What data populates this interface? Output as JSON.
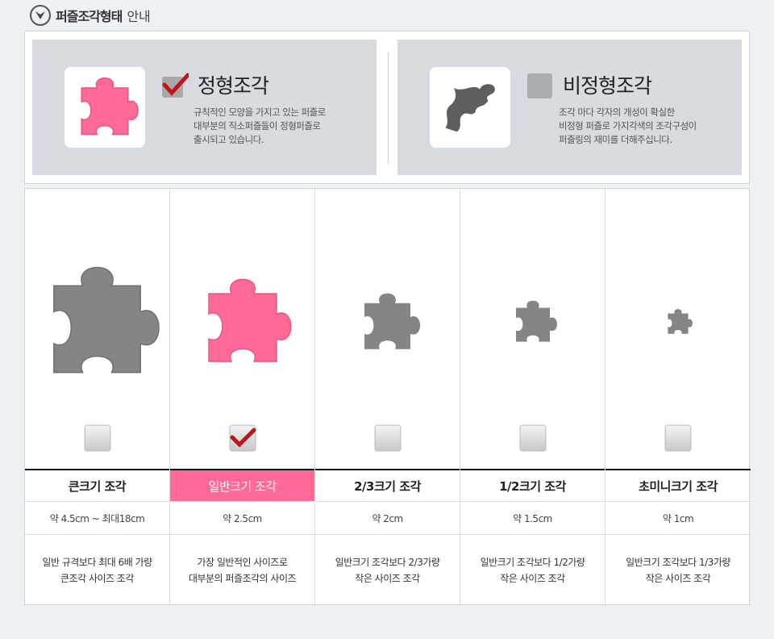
{
  "header": {
    "title_bold": "퍼즐조각형태",
    "title_rest": "안내"
  },
  "colors": {
    "pink": "#ff6a96",
    "gray": "#858585",
    "dark_gray": "#5e5e5e",
    "check": "#c0141c"
  },
  "types": [
    {
      "title": "정형조각",
      "checked": true,
      "desc": "규칙적인 모양을 가지고 있는 퍼즐로\n대부분의 직소퍼즐들이 정형퍼즐로\n출시되고 있습니다."
    },
    {
      "title": "비정형조각",
      "checked": false,
      "desc": "조각 마다 각자의 개성이 확실한\n비정형 퍼즐로 가지각색의 조각구성이\n퍼즐링의 재미를 더해주십니다."
    }
  ],
  "sizes": [
    {
      "name": "큰크기 조각",
      "size": "약 4.5cm ~ 최대18cm",
      "desc": "일반 규격보다 최대 6배 가량\n큰조각 사이즈 조각",
      "checked": false
    },
    {
      "name": "일반크기 조각",
      "size": "약 2.5cm",
      "desc": "가장 일반적인 사이즈로\n대부분의 퍼즐조각의 사이즈",
      "checked": true
    },
    {
      "name": "2/3크기 조각",
      "size": "약 2cm",
      "desc": "일반크기 조각보다 2/3가량\n작은 사이즈 조각",
      "checked": false
    },
    {
      "name": "1/2크기 조각",
      "size": "약 1.5cm",
      "desc": "일반크기 조각보다 1/2가량\n작은 사이즈 조각",
      "checked": false
    },
    {
      "name": "초미니크기 조각",
      "size": "약 1cm",
      "desc": "일반크기 조각보다 1/3가량\n작은 사이즈 조각",
      "checked": false
    }
  ]
}
